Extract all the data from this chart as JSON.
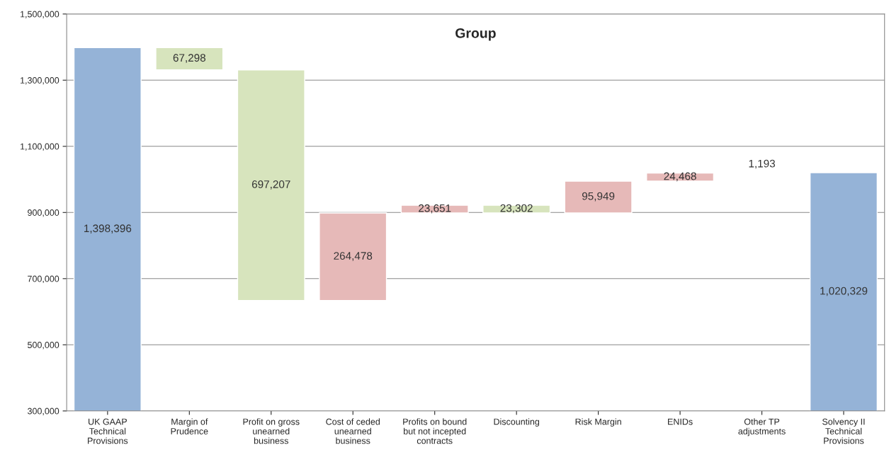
{
  "chart_data": {
    "type": "bar",
    "title": "Group",
    "categories": [
      "UK GAAP Technical Provisions",
      "Margin of Prudence",
      "Profit on gross unearned business",
      "Cost of ceded unearned business",
      "Profits on bound but not incepted contracts",
      "Discounting",
      "Risk Margin",
      "ENIDs",
      "Other TP adjustments",
      "Solvency II Technical Provisions"
    ],
    "values": [
      1398396,
      67298,
      697207,
      264478,
      23651,
      23302,
      95949,
      24468,
      1193,
      1020329
    ],
    "base": [
      0,
      1331098,
      633891,
      633891,
      898369,
      898718,
      898718,
      994667,
      1019136,
      0
    ],
    "colors": [
      "#95b3d7",
      "#d7e4bd",
      "#d7e4bd",
      "#e6b9b8",
      "#e6b9b8",
      "#d7e4bd",
      "#e6b9b8",
      "#e6b9b8",
      "#e6b9b8",
      "#95b3d7"
    ],
    "value_labels": [
      "1,398,396",
      "67,298",
      "697,207",
      "264,478",
      "23,651",
      "23,302",
      "95,949",
      "24,468",
      "1,193",
      "1,020,329"
    ],
    "ylim": [
      300000,
      1500000
    ],
    "yticks": [
      {
        "value": 300000,
        "label": "300,000"
      },
      {
        "value": 500000,
        "label": "500,000"
      },
      {
        "value": 700000,
        "label": "700,000"
      },
      {
        "value": 900000,
        "label": "900,000"
      },
      {
        "value": 1100000,
        "label": "1,100,000"
      },
      {
        "value": 1300000,
        "label": "1,300,000"
      },
      {
        "value": 1500000,
        "label": "1,500,000"
      }
    ],
    "grid": "y"
  }
}
